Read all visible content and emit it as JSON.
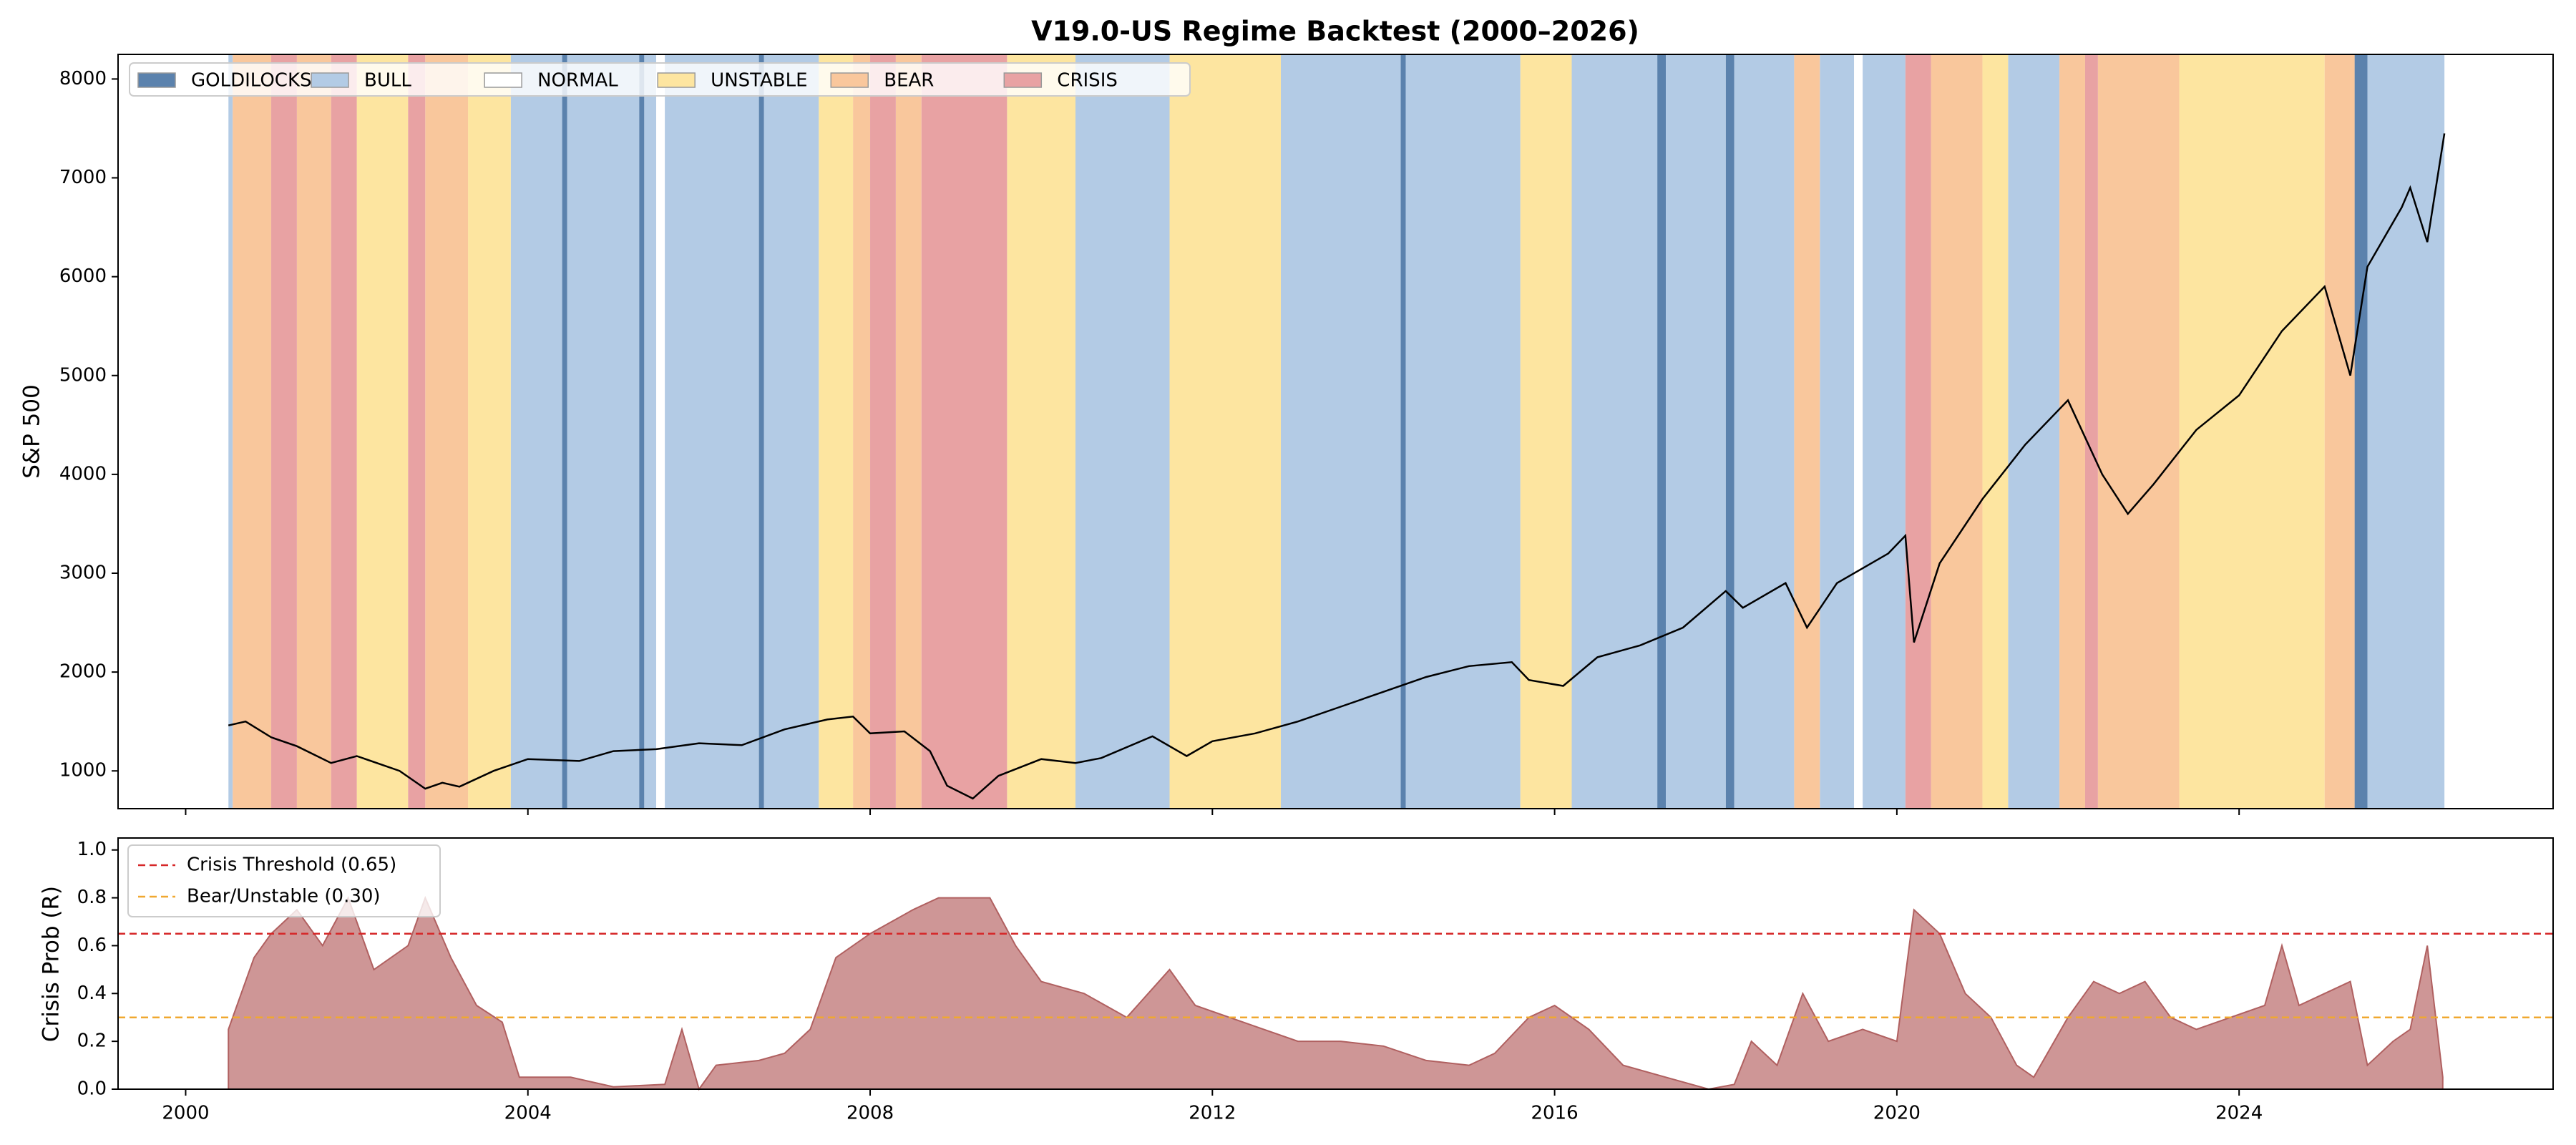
{
  "chart_data": [
    {
      "type": "line",
      "title": "V19.0-US Regime Backtest (2000–2026)",
      "y_label": "S&P 500",
      "color": "#000000",
      "x": [
        2000.5,
        2000.7,
        2001.0,
        2001.3,
        2001.7,
        2002.0,
        2002.5,
        2002.8,
        2003.0,
        2003.2,
        2003.6,
        2004.0,
        2004.6,
        2005.0,
        2005.5,
        2006.0,
        2006.5,
        2007.0,
        2007.5,
        2007.8,
        2008.0,
        2008.4,
        2008.7,
        2008.9,
        2009.2,
        2009.5,
        2010.0,
        2010.4,
        2010.7,
        2011.3,
        2011.7,
        2012.0,
        2012.5,
        2013.0,
        2013.5,
        2014.0,
        2014.5,
        2015.0,
        2015.5,
        2015.7,
        2016.1,
        2016.5,
        2017.0,
        2017.5,
        2018.0,
        2018.2,
        2018.7,
        2018.95,
        2019.3,
        2019.9,
        2020.1,
        2020.2,
        2020.5,
        2021.0,
        2021.5,
        2022.0,
        2022.4,
        2022.7,
        2023.0,
        2023.5,
        2024.0,
        2024.5,
        2025.0,
        2025.3,
        2025.5,
        2025.9,
        2026.0,
        2026.2,
        2026.4
      ],
      "values": [
        1460,
        1500,
        1340,
        1250,
        1080,
        1150,
        1000,
        820,
        880,
        840,
        1000,
        1120,
        1100,
        1200,
        1220,
        1280,
        1260,
        1420,
        1520,
        1550,
        1380,
        1400,
        1200,
        850,
        720,
        950,
        1120,
        1080,
        1130,
        1350,
        1150,
        1300,
        1380,
        1500,
        1650,
        1800,
        1950,
        2060,
        2100,
        1920,
        1860,
        2150,
        2270,
        2450,
        2820,
        2650,
        2900,
        2450,
        2900,
        3200,
        3380,
        2300,
        3100,
        3750,
        4300,
        4750,
        4000,
        3600,
        3900,
        4450,
        4800,
        5450,
        5900,
        5000,
        6100,
        6700,
        6900,
        6350,
        7450
      ],
      "ylim": [
        618,
        8249
      ],
      "yticks": [
        1000,
        2000,
        3000,
        4000,
        5000,
        6000,
        7000,
        8000
      ],
      "legend": "upper left",
      "regimes": [
        {
          "name": "GOLDILOCKS",
          "color": "#5b82ad",
          "spans": [
            [
              2004.4,
              2004.46
            ],
            [
              2005.3,
              2005.36
            ],
            [
              2006.7,
              2006.76
            ],
            [
              2014.2,
              2014.26
            ],
            [
              2017.2,
              2017.3
            ],
            [
              2018.0,
              2018.1
            ],
            [
              2025.35,
              2025.5
            ]
          ]
        },
        {
          "name": "BULL",
          "color": "#b3cbe5",
          "spans": [
            [
              2000.5,
              2000.55
            ],
            [
              2003.8,
              2004.4
            ],
            [
              2004.46,
              2005.3
            ],
            [
              2005.36,
              2005.5
            ],
            [
              2005.6,
              2006.7
            ],
            [
              2006.76,
              2007.4
            ],
            [
              2010.4,
              2011.5
            ],
            [
              2012.8,
              2014.2
            ],
            [
              2014.26,
              2015.6
            ],
            [
              2016.2,
              2017.2
            ],
            [
              2017.3,
              2018.0
            ],
            [
              2018.1,
              2018.8
            ],
            [
              2019.1,
              2019.5
            ],
            [
              2019.6,
              2020.1
            ],
            [
              2021.3,
              2021.9
            ],
            [
              2025.5,
              2026.4
            ]
          ]
        },
        {
          "name": "NORMAL",
          "color": "#ffffff",
          "spans": [
            [
              2005.5,
              2005.6
            ],
            [
              2019.5,
              2019.6
            ]
          ]
        },
        {
          "name": "UNSTABLE",
          "color": "#fde5a0",
          "spans": [
            [
              2002.0,
              2002.6
            ],
            [
              2003.3,
              2003.8
            ],
            [
              2007.4,
              2007.8
            ],
            [
              2009.6,
              2010.4
            ],
            [
              2011.5,
              2012.8
            ],
            [
              2015.6,
              2016.2
            ],
            [
              2021.0,
              2021.3
            ],
            [
              2023.3,
              2025.0
            ]
          ]
        },
        {
          "name": "BEAR",
          "color": "#f9c79c",
          "spans": [
            [
              2000.55,
              2001.0
            ],
            [
              2001.3,
              2001.7
            ],
            [
              2002.8,
              2003.3
            ],
            [
              2007.8,
              2008.0
            ],
            [
              2008.3,
              2008.6
            ],
            [
              2018.8,
              2019.1
            ],
            [
              2020.4,
              2021.0
            ],
            [
              2021.9,
              2022.2
            ],
            [
              2022.35,
              2023.3
            ],
            [
              2025.0,
              2025.35
            ]
          ]
        },
        {
          "name": "CRISIS",
          "color": "#e8a2a3",
          "spans": [
            [
              2001.0,
              2001.3
            ],
            [
              2001.7,
              2002.0
            ],
            [
              2002.6,
              2002.8
            ],
            [
              2008.0,
              2008.3
            ],
            [
              2008.6,
              2009.6
            ],
            [
              2020.1,
              2020.4
            ],
            [
              2022.2,
              2022.35
            ]
          ]
        }
      ]
    },
    {
      "type": "area",
      "y_label": "Crisis Prob (R)",
      "color": "#c98b8b",
      "x": [
        2000.5,
        2000.8,
        2001.0,
        2001.3,
        2001.6,
        2001.9,
        2002.2,
        2002.6,
        2002.8,
        2003.1,
        2003.4,
        2003.7,
        2003.9,
        2004.5,
        2005.0,
        2005.6,
        2005.8,
        2006.0,
        2006.2,
        2006.7,
        2007.0,
        2007.3,
        2007.6,
        2008.0,
        2008.5,
        2008.8,
        2009.4,
        2009.7,
        2010.0,
        2010.5,
        2011.0,
        2011.5,
        2011.8,
        2012.2,
        2012.6,
        2013.0,
        2013.5,
        2014.0,
        2014.5,
        2015.0,
        2015.3,
        2015.7,
        2016.0,
        2016.4,
        2016.8,
        2017.3,
        2017.8,
        2018.1,
        2018.3,
        2018.6,
        2018.9,
        2019.2,
        2019.6,
        2020.0,
        2020.2,
        2020.5,
        2020.8,
        2021.1,
        2021.4,
        2021.6,
        2022.0,
        2022.3,
        2022.6,
        2022.9,
        2023.2,
        2023.5,
        2023.9,
        2024.3,
        2024.5,
        2024.7,
        2025.0,
        2025.3,
        2025.5,
        2025.8,
        2026.0,
        2026.2,
        2026.38
      ],
      "values": [
        0.25,
        0.55,
        0.65,
        0.75,
        0.6,
        0.8,
        0.5,
        0.6,
        0.8,
        0.55,
        0.35,
        0.28,
        0.05,
        0.05,
        0.01,
        0.02,
        0.25,
        0.0,
        0.1,
        0.12,
        0.15,
        0.25,
        0.55,
        0.65,
        0.75,
        0.8,
        0.8,
        0.6,
        0.45,
        0.4,
        0.3,
        0.5,
        0.35,
        0.3,
        0.25,
        0.2,
        0.2,
        0.18,
        0.12,
        0.1,
        0.15,
        0.3,
        0.35,
        0.25,
        0.1,
        0.05,
        0.0,
        0.02,
        0.2,
        0.1,
        0.4,
        0.2,
        0.25,
        0.2,
        0.75,
        0.65,
        0.4,
        0.3,
        0.1,
        0.05,
        0.3,
        0.45,
        0.4,
        0.45,
        0.3,
        0.25,
        0.3,
        0.35,
        0.6,
        0.35,
        0.4,
        0.45,
        0.1,
        0.2,
        0.25,
        0.6,
        0.05
      ],
      "xlim": [
        1999.21,
        2027.67
      ],
      "xticks": [
        2000,
        2004,
        2008,
        2012,
        2016,
        2020,
        2024
      ],
      "ylim": [
        0,
        1.05
      ],
      "yticks": [
        {
          "value": 0,
          "label": "0.0"
        },
        0.2,
        0.4,
        0.6,
        0.8,
        {
          "value": 1,
          "label": "1.0"
        }
      ],
      "legend": "upper left",
      "hlines": [
        {
          "name": "Crisis Threshold (0.65)",
          "value": 0.65,
          "color": "#d62728"
        },
        {
          "name": "Bear/Unstable (0.30)",
          "value": 0.3,
          "color": "#f0a830"
        }
      ]
    }
  ]
}
